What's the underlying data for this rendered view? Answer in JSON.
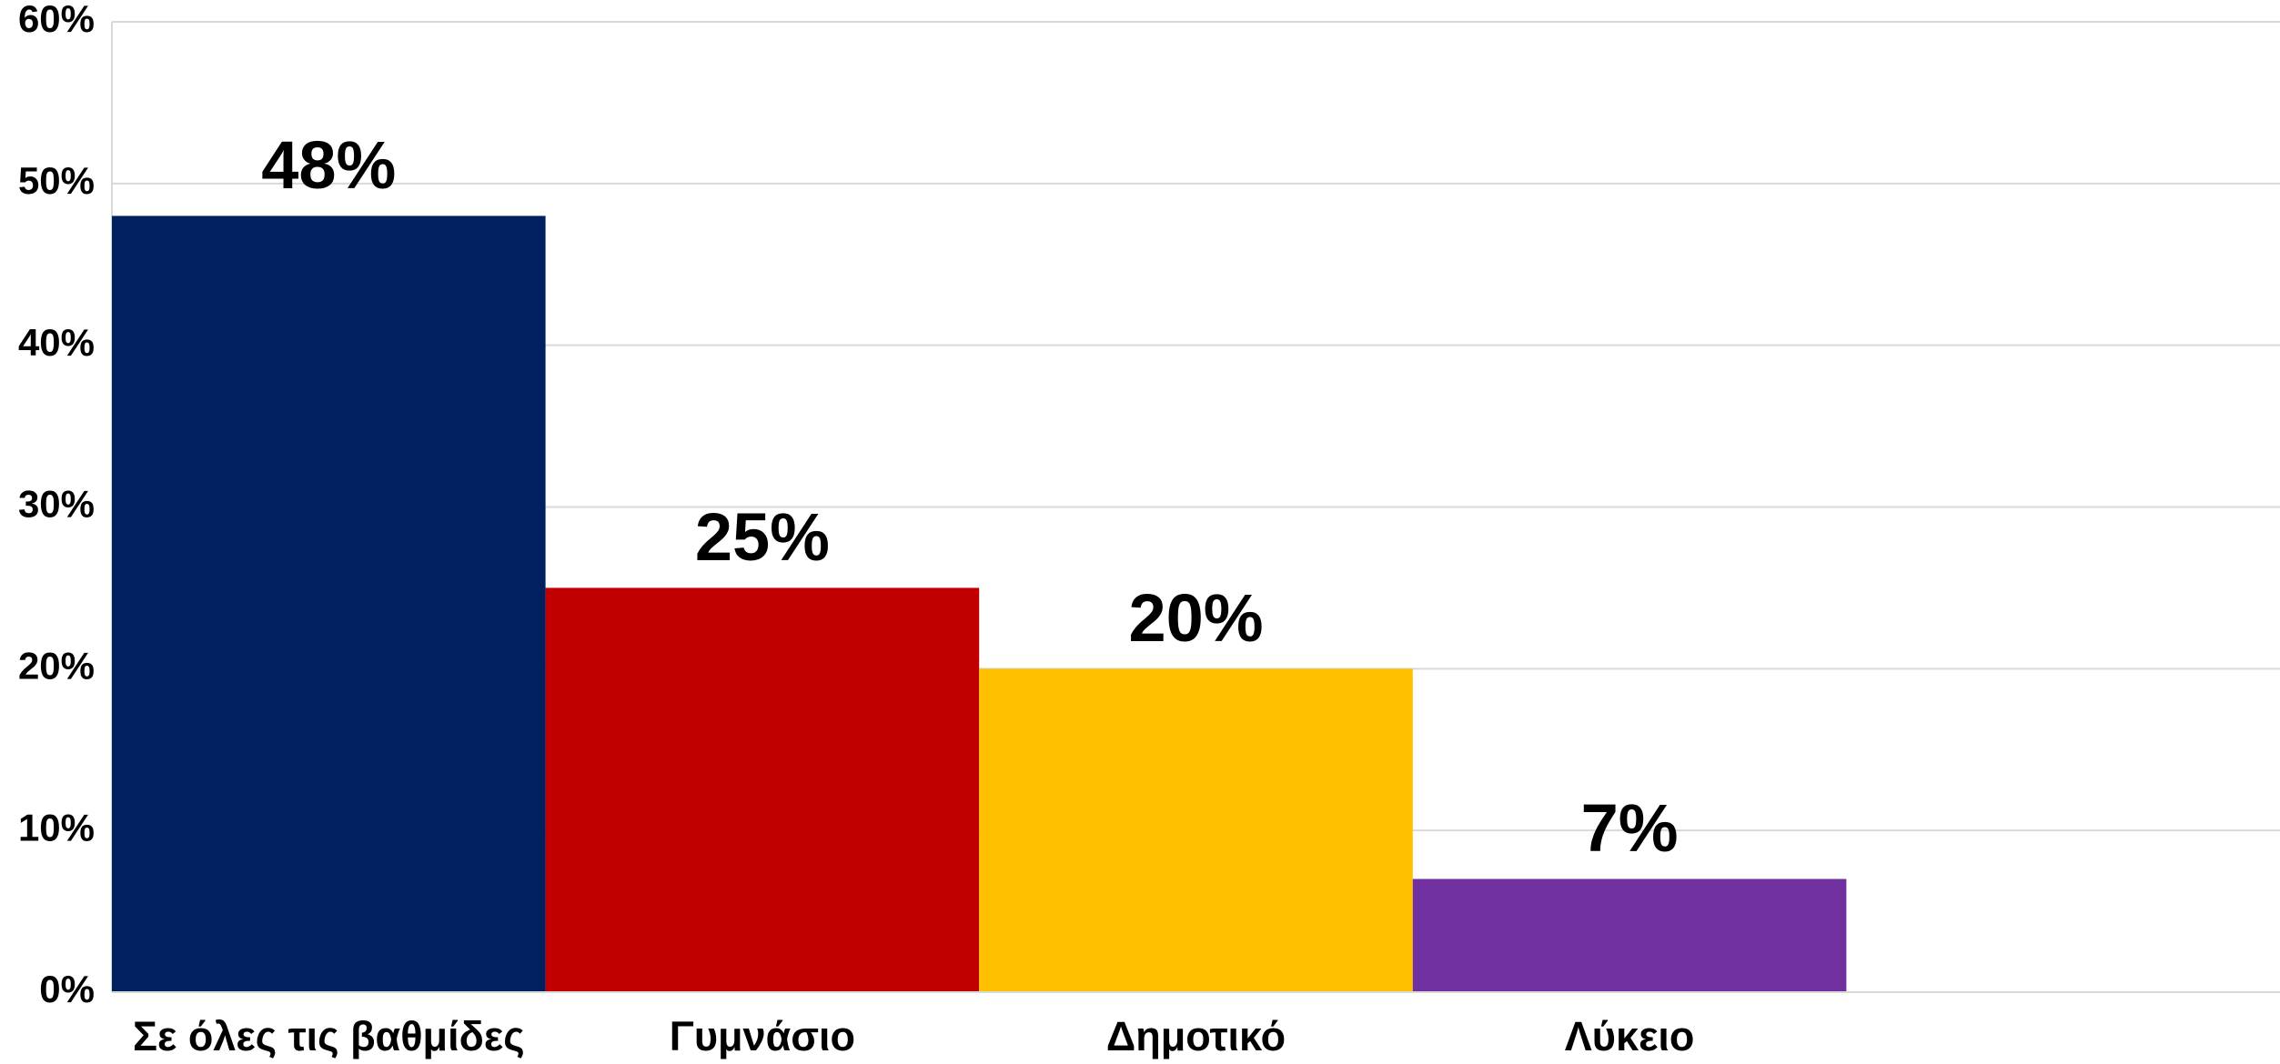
{
  "chart_data": {
    "type": "bar",
    "categories": [
      "Σε όλες τις βαθμίδες",
      "Γυμνάσιο",
      "Δημοτικό",
      "Λύκειο"
    ],
    "values": [
      48,
      25,
      20,
      7
    ],
    "value_labels": [
      "48%",
      "25%",
      "20%",
      "7%"
    ],
    "colors": [
      "#002060",
      "#c00000",
      "#ffc000",
      "#7030a0"
    ],
    "ylim": [
      0,
      60
    ],
    "yticks": [
      {
        "value": 0,
        "label": "0%"
      },
      {
        "value": 10,
        "label": "10%"
      },
      {
        "value": 20,
        "label": "20%"
      },
      {
        "value": 30,
        "label": "30%"
      },
      {
        "value": 40,
        "label": "40%"
      },
      {
        "value": 50,
        "label": "50%"
      },
      {
        "value": 60,
        "label": "60%"
      }
    ],
    "grid": true
  }
}
